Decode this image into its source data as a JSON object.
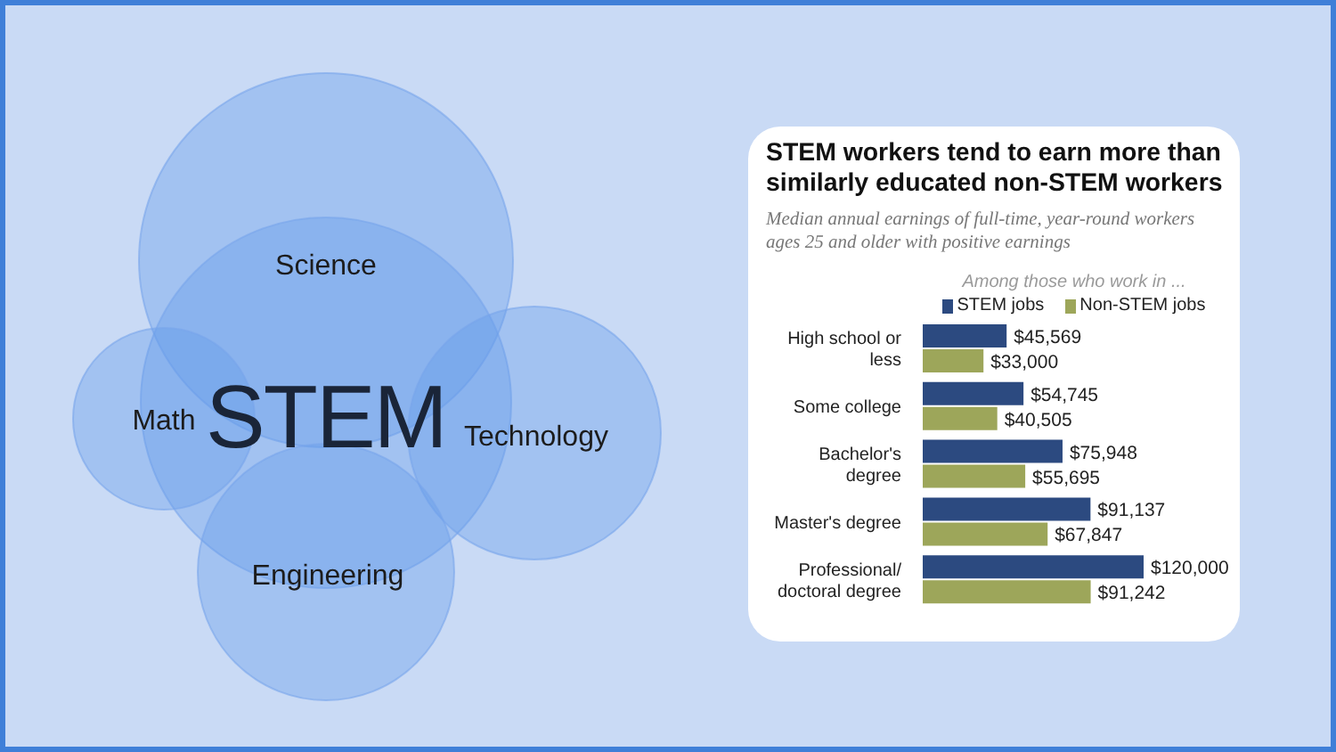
{
  "chart_data": [
    {
      "type": "other",
      "annotations": [
        "STEM",
        "Science",
        "Math",
        "Technology",
        "Engineering"
      ]
    },
    {
      "type": "bar",
      "orientation": "horizontal",
      "title": "STEM workers tend to earn more than similarly educated non-STEM workers",
      "subtitle": "Median annual earnings of full-time, year-round workers ages 25 and older with positive earnings",
      "legend_title": "Among those who work in ...",
      "legend": "top",
      "categories": [
        "High school or less",
        "Some college",
        "Bachelor's degree",
        "Master's degree",
        "Professional/ doctoral degree"
      ],
      "series": [
        {
          "name": "STEM jobs",
          "color": "#2c4a80",
          "values": [
            45569,
            54745,
            75948,
            91137,
            120000
          ],
          "value_labels": [
            "$45,569",
            "$54,745",
            "$75,948",
            "$91,137",
            "$120,000"
          ]
        },
        {
          "name": "Non-STEM jobs",
          "color": "#9da65a",
          "values": [
            33000,
            40505,
            55695,
            67847,
            91242
          ],
          "value_labels": [
            "$33,000",
            "$40,505",
            "$55,695",
            "$67,847",
            "$91,242"
          ]
        }
      ]
    }
  ]
}
